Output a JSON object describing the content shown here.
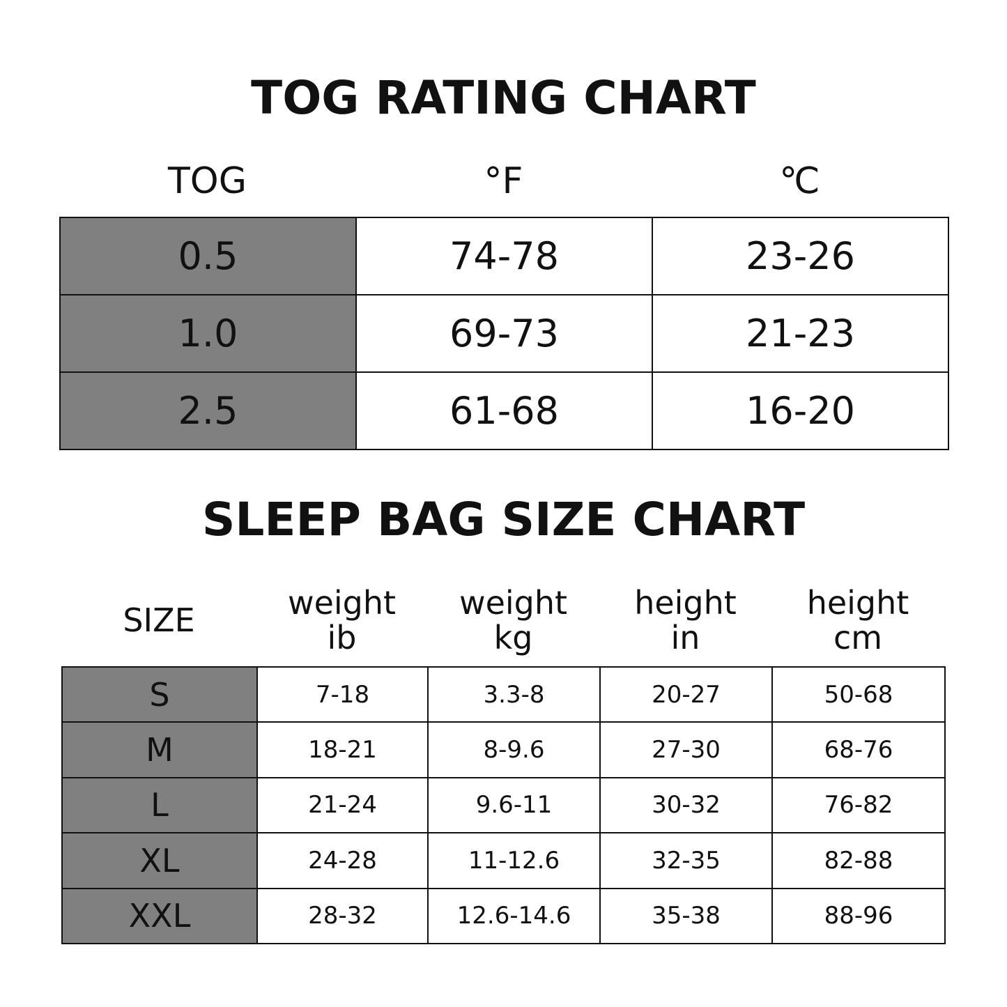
{
  "tog_chart": {
    "title": "TOG RATING CHART",
    "headers": [
      "TOG",
      "°F",
      "℃"
    ],
    "rows": [
      [
        "0.5",
        "74-78",
        "23-26"
      ],
      [
        "1.0",
        "69-73",
        "21-23"
      ],
      [
        "2.5",
        "61-68",
        "16-20"
      ]
    ]
  },
  "size_chart": {
    "title": "SLEEP BAG SIZE CHART",
    "headers": [
      [
        "SIZE"
      ],
      [
        "weight",
        "ib"
      ],
      [
        "weight",
        "kg"
      ],
      [
        "height",
        "in"
      ],
      [
        "height",
        "cm"
      ]
    ],
    "rows": [
      [
        "S",
        "7-18",
        "3.3-8",
        "20-27",
        "50-68"
      ],
      [
        "M",
        "18-21",
        "8-9.6",
        "27-30",
        "68-76"
      ],
      [
        "L",
        "21-24",
        "9.6-11",
        "30-32",
        "76-82"
      ],
      [
        "XL",
        "24-28",
        "11-12.6",
        "32-35",
        "82-88"
      ],
      [
        "XXL",
        "28-32",
        "12.6-14.6",
        "35-38",
        "88-96"
      ]
    ]
  }
}
